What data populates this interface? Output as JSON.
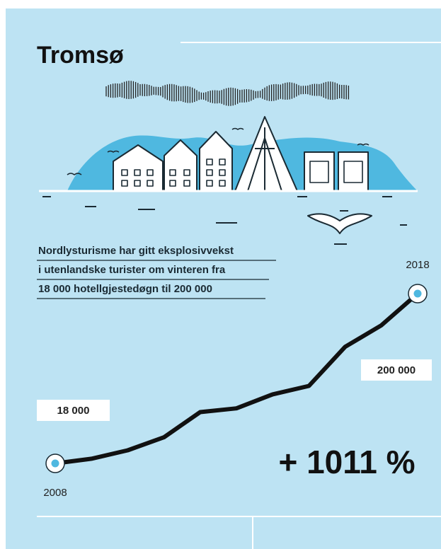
{
  "chart_data": {
    "type": "line",
    "title": "Tromsø",
    "subtitle": [
      "Nordlysturisme har gitt eksplosivvekst",
      "i utenlandske turister om vinteren fra",
      "18 000 hotellgjestedøgn til 200 000"
    ],
    "categories": [
      "2008",
      null,
      null,
      null,
      null,
      null,
      null,
      null,
      null,
      null,
      "2018"
    ],
    "values": [
      18000,
      23000,
      32000,
      46000,
      73000,
      77000,
      92000,
      101000,
      143000,
      166000,
      200000
    ],
    "value_labels": [
      "18 000",
      null,
      null,
      null,
      null,
      null,
      null,
      null,
      null,
      null,
      "200 000"
    ],
    "annotation": "+ 1011 %",
    "color": "#111111",
    "marker_color": "#4fb8e0"
  }
}
